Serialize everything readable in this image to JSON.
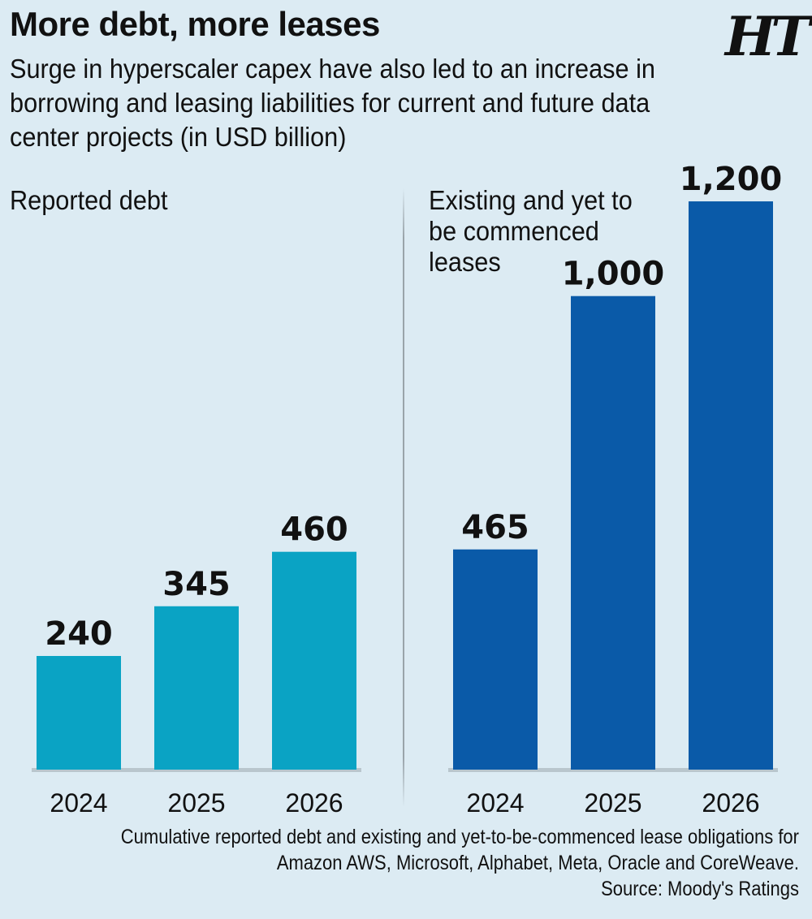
{
  "header": {
    "title": "More debt, more leases",
    "subtitle": "Surge in hyperscaler capex have also led to an increase in borrowing and leasing liabilities for current and future data center projects (in USD billion)",
    "logo_text": "HT"
  },
  "chart_data": [
    {
      "type": "bar",
      "title": "Reported debt",
      "categories": [
        "2024",
        "2025",
        "2026"
      ],
      "values": [
        240,
        345,
        460
      ],
      "value_labels": [
        "240",
        "345",
        "460"
      ],
      "color": "#0aa3c4",
      "ylim": [
        0,
        1200
      ],
      "grid": false
    },
    {
      "type": "bar",
      "title": "Existing and yet to be commenced leases",
      "categories": [
        "2024",
        "2025",
        "2026"
      ],
      "values": [
        465,
        1000,
        1200
      ],
      "value_labels": [
        "465",
        "1,000",
        "1,200"
      ],
      "color": "#0a5aa8",
      "ylim": [
        0,
        1200
      ],
      "grid": false
    }
  ],
  "footer": {
    "note_line1": "Cumulative reported debt and existing and yet-to-be-commenced lease obligations for",
    "note_line2": "Amazon AWS, Microsoft, Alphabet, Meta, Oracle and CoreWeave.",
    "source": "Source: Moody's Ratings"
  }
}
